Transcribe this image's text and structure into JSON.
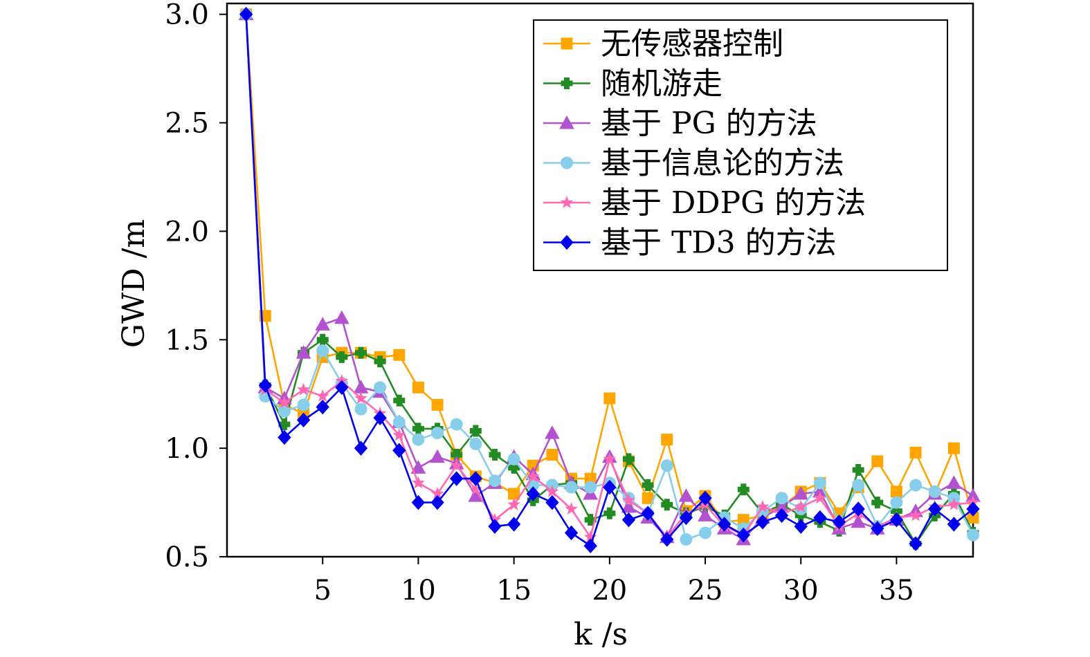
{
  "chart_data": {
    "type": "line",
    "title": "",
    "xlabel": "k /s",
    "ylabel": "GWD /m",
    "xlim": [
      0.0,
      39.0
    ],
    "ylim": [
      0.5,
      3.05
    ],
    "xticks": [
      5,
      10,
      15,
      20,
      25,
      30,
      35
    ],
    "xtick_labels": [
      "5",
      "10",
      "15",
      "20",
      "25",
      "30",
      "35"
    ],
    "yticks": [
      0.5,
      1.0,
      1.5,
      2.0,
      2.5,
      3.0
    ],
    "ytick_labels": [
      "0.5",
      "1.0",
      "1.5",
      "2.0",
      "2.5",
      "3.0"
    ],
    "grid": false,
    "legend_position": "top-right",
    "x": [
      1,
      2,
      3,
      4,
      5,
      6,
      7,
      8,
      9,
      10,
      11,
      12,
      13,
      14,
      15,
      16,
      17,
      18,
      19,
      20,
      21,
      22,
      23,
      24,
      25,
      26,
      27,
      28,
      29,
      30,
      31,
      32,
      33,
      34,
      35,
      36,
      37,
      38,
      39
    ],
    "series": [
      {
        "name": "无传感器控制",
        "color": "#FFA500",
        "marker": "square",
        "values": [
          3.0,
          1.61,
          1.2,
          1.16,
          1.42,
          1.44,
          1.44,
          1.42,
          1.43,
          1.28,
          1.2,
          0.97,
          0.87,
          0.84,
          0.79,
          0.92,
          0.97,
          0.86,
          0.86,
          1.23,
          0.94,
          0.77,
          1.04,
          0.71,
          0.78,
          0.66,
          0.67,
          0.69,
          0.73,
          0.8,
          0.84,
          0.7,
          0.82,
          0.94,
          0.8,
          0.98,
          0.79,
          1.0,
          0.68
        ]
      },
      {
        "name": "随机游走",
        "color": "#228B22",
        "marker": "plus",
        "values": [
          3.0,
          1.29,
          1.11,
          1.44,
          1.5,
          1.42,
          1.44,
          1.4,
          1.22,
          1.09,
          1.09,
          0.97,
          1.08,
          0.97,
          0.91,
          0.76,
          0.83,
          0.84,
          0.67,
          0.7,
          0.95,
          0.83,
          0.74,
          0.7,
          0.73,
          0.69,
          0.81,
          0.7,
          0.74,
          0.69,
          0.66,
          0.62,
          0.9,
          0.75,
          0.71,
          0.56,
          0.69,
          0.79,
          0.61
        ]
      },
      {
        "name": "基于 PG 的方法",
        "color": "#B252CF",
        "marker": "triangle",
        "values": [
          3.0,
          1.28,
          1.23,
          1.44,
          1.57,
          1.6,
          1.28,
          1.26,
          1.12,
          0.91,
          0.96,
          0.93,
          0.78,
          0.84,
          0.96,
          0.88,
          1.07,
          0.84,
          0.79,
          0.96,
          0.73,
          0.68,
          0.59,
          0.78,
          0.69,
          0.63,
          0.58,
          0.68,
          0.73,
          0.79,
          0.8,
          0.63,
          0.66,
          0.63,
          0.67,
          0.71,
          0.79,
          0.84,
          0.78
        ]
      },
      {
        "name": "基于信息论的方法",
        "color": "#87CEEB",
        "marker": "circle",
        "values": [
          3.0,
          1.24,
          1.17,
          1.2,
          1.45,
          1.3,
          1.18,
          1.28,
          1.12,
          1.04,
          1.07,
          1.11,
          1.02,
          0.85,
          0.95,
          0.83,
          0.83,
          0.82,
          0.82,
          0.84,
          0.77,
          0.7,
          0.92,
          0.58,
          0.61,
          0.68,
          0.63,
          0.71,
          0.77,
          0.72,
          0.84,
          0.66,
          0.83,
          0.64,
          0.75,
          0.83,
          0.8,
          0.77,
          0.6
        ]
      },
      {
        "name": "基于 DDPG 的方法",
        "color": "#FF69B4",
        "marker": "star",
        "values": [
          3.0,
          1.27,
          1.21,
          1.27,
          1.24,
          1.31,
          1.23,
          1.16,
          1.06,
          0.84,
          0.79,
          0.92,
          0.81,
          0.67,
          0.74,
          0.87,
          0.8,
          0.72,
          0.59,
          0.95,
          0.76,
          0.7,
          0.59,
          0.7,
          0.74,
          0.64,
          0.6,
          0.73,
          0.7,
          0.73,
          0.77,
          0.64,
          0.7,
          0.64,
          0.68,
          0.69,
          0.73,
          0.74,
          0.75
        ]
      },
      {
        "name": "基于 TD3 的方法",
        "color": "#0000EE",
        "marker": "diamond",
        "values": [
          3.0,
          1.29,
          1.05,
          1.13,
          1.19,
          1.28,
          1.0,
          1.14,
          0.99,
          0.75,
          0.75,
          0.86,
          0.86,
          0.64,
          0.65,
          0.79,
          0.75,
          0.61,
          0.55,
          0.82,
          0.67,
          0.7,
          0.58,
          0.68,
          0.77,
          0.65,
          0.6,
          0.66,
          0.69,
          0.64,
          0.68,
          0.66,
          0.72,
          0.63,
          0.67,
          0.56,
          0.72,
          0.65,
          0.72
        ]
      }
    ]
  }
}
